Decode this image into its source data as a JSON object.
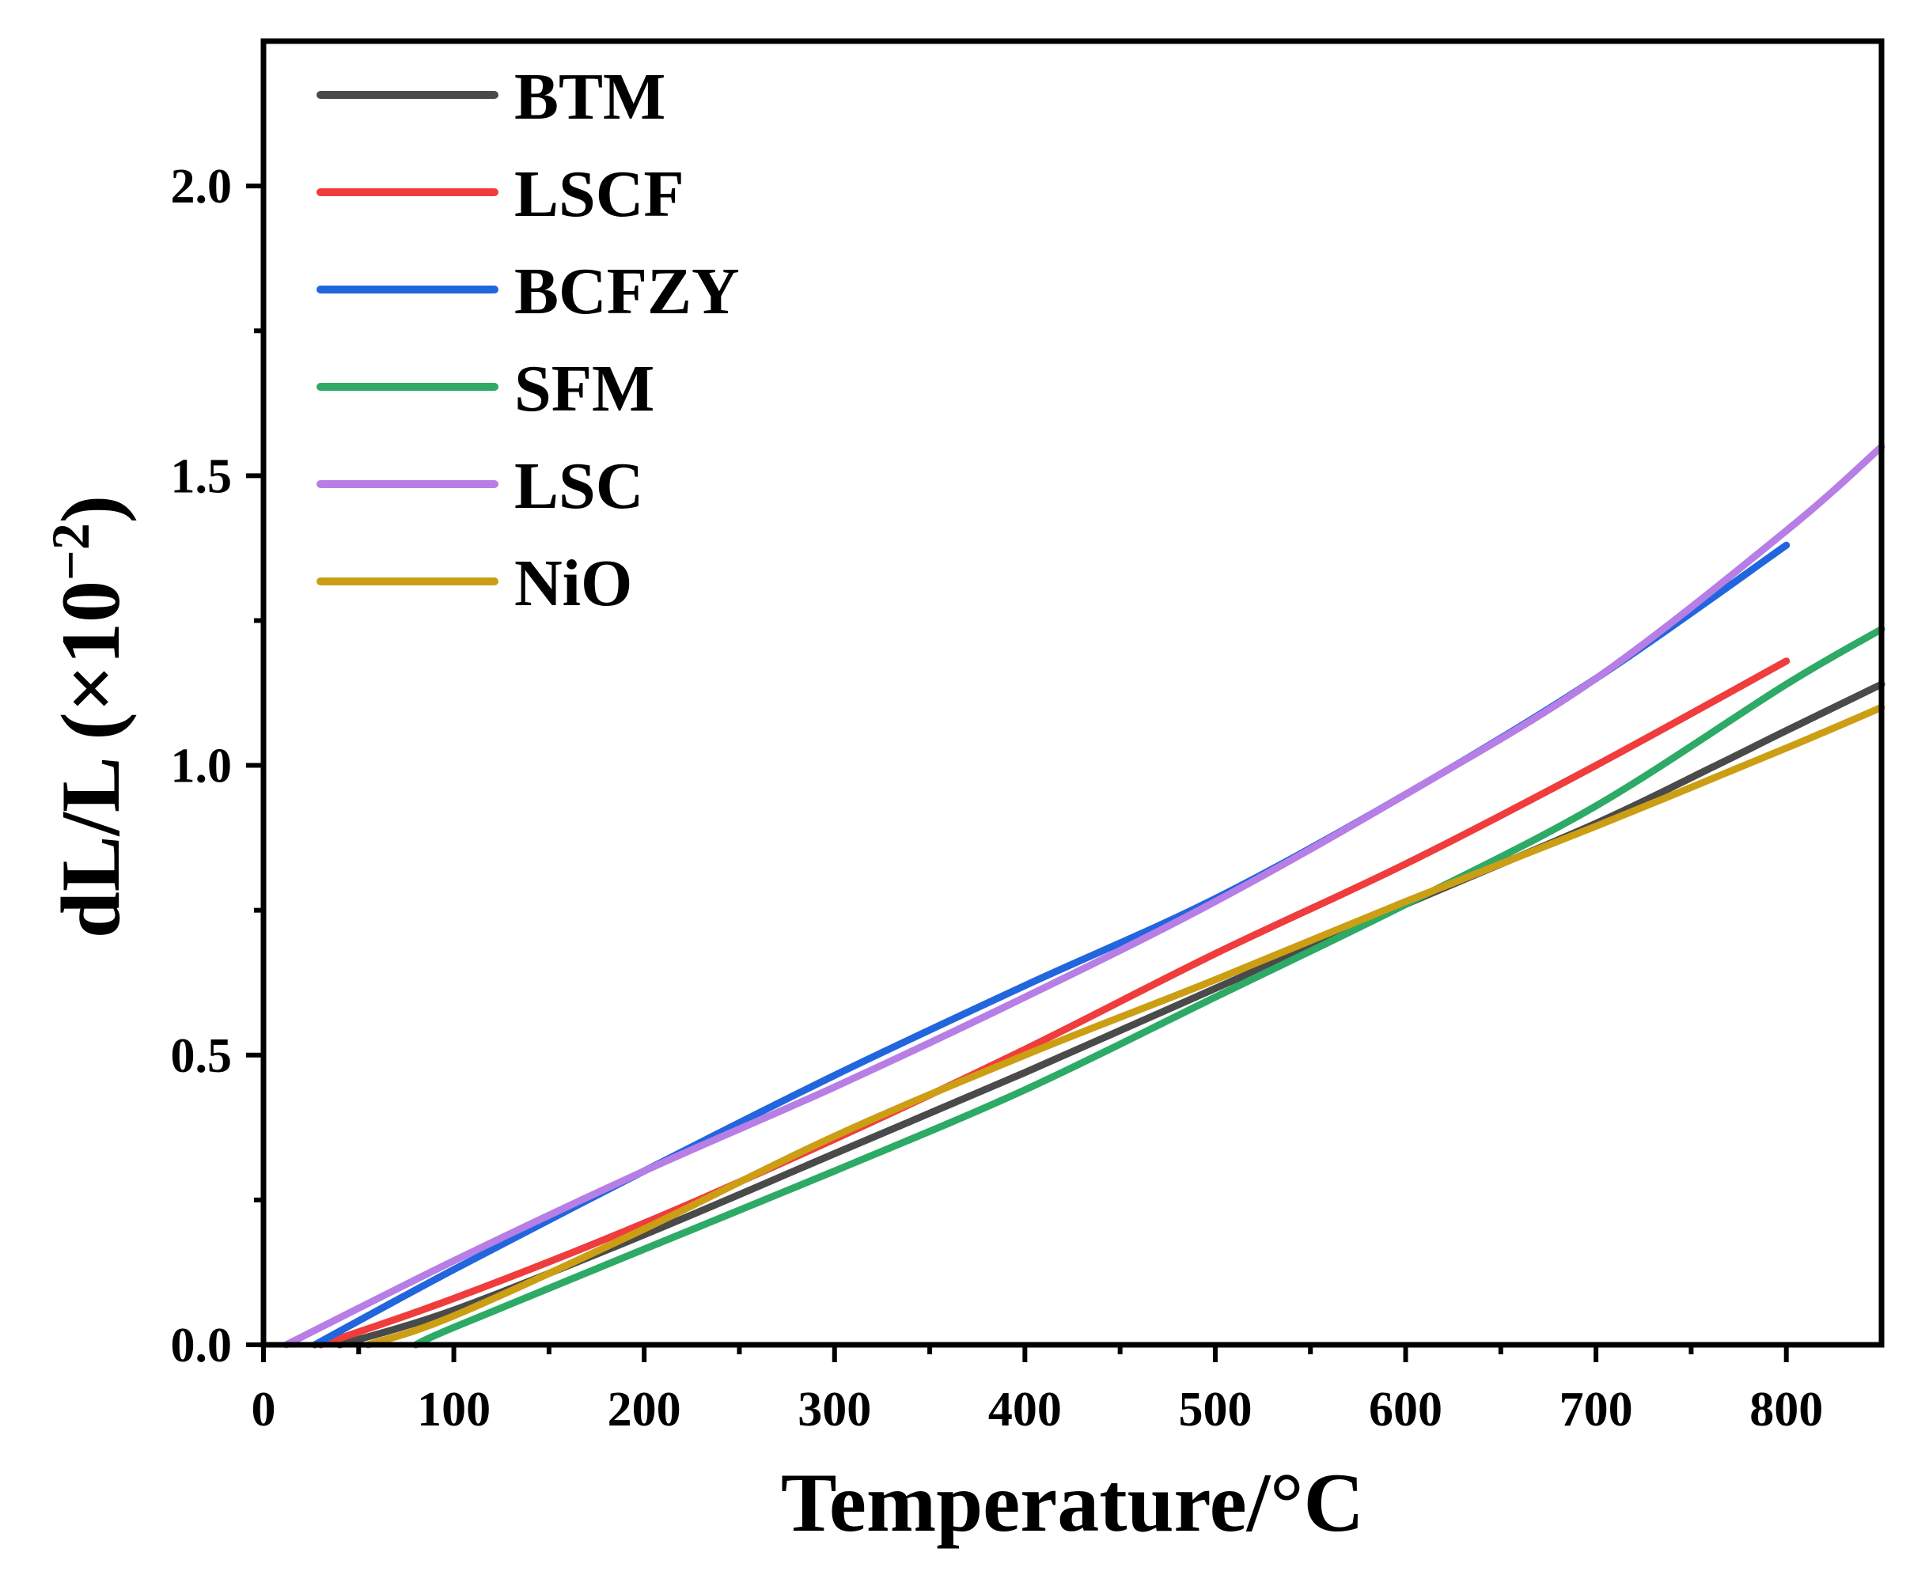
{
  "chart_data": {
    "type": "line",
    "title": "",
    "xlabel": "Temperature/°C",
    "ylabel": "dL/L (×10",
    "ylabel_exponent": "−2",
    "ylabel_close": ")",
    "xlim": [
      0,
      850
    ],
    "ylim": [
      0,
      2.25
    ],
    "x_ticks": [
      0,
      100,
      200,
      300,
      400,
      500,
      600,
      700,
      800
    ],
    "x_tick_labels": [
      "0",
      "100",
      "200",
      "300",
      "400",
      "500",
      "600",
      "700",
      "800"
    ],
    "y_ticks": [
      0.0,
      0.5,
      1.0,
      1.5,
      2.0
    ],
    "y_tick_labels": [
      "0.0",
      "0.5",
      "1.0",
      "1.5",
      "2.0"
    ],
    "grid": false,
    "legend_position": "top-left",
    "series": [
      {
        "name": "BTM",
        "color": "#4a4a4a",
        "x": [
          40,
          100,
          200,
          300,
          400,
          500,
          600,
          700,
          760,
          800,
          850
        ],
        "y": [
          0.0,
          0.06,
          0.19,
          0.33,
          0.47,
          0.615,
          0.76,
          0.9,
          0.995,
          1.06,
          1.14
        ]
      },
      {
        "name": "LSCF",
        "color": "#f03c3c",
        "x": [
          30,
          100,
          200,
          300,
          400,
          500,
          600,
          700,
          800
        ],
        "y": [
          0.0,
          0.08,
          0.21,
          0.355,
          0.51,
          0.675,
          0.83,
          1.0,
          1.18
        ]
      },
      {
        "name": "BCFZY",
        "color": "#2266dd",
        "x": [
          27,
          100,
          200,
          300,
          400,
          500,
          600,
          700,
          800
        ],
        "y": [
          0.0,
          0.13,
          0.3,
          0.465,
          0.62,
          0.77,
          0.95,
          1.15,
          1.38
        ]
      },
      {
        "name": "SFM",
        "color": "#2daa66",
        "x": [
          80,
          100,
          200,
          300,
          400,
          500,
          600,
          700,
          800,
          850
        ],
        "y": [
          0.0,
          0.03,
          0.165,
          0.3,
          0.44,
          0.6,
          0.76,
          0.93,
          1.14,
          1.235
        ]
      },
      {
        "name": "LSC",
        "color": "#b77ee6",
        "x": [
          12,
          100,
          200,
          300,
          400,
          500,
          600,
          700,
          800,
          850
        ],
        "y": [
          0.0,
          0.145,
          0.3,
          0.445,
          0.6,
          0.765,
          0.95,
          1.15,
          1.405,
          1.55
        ]
      },
      {
        "name": "NiO",
        "color": "#cc9e14",
        "x": [
          55,
          100,
          200,
          300,
          400,
          500,
          600,
          700,
          800,
          850
        ],
        "y": [
          0.0,
          0.05,
          0.2,
          0.36,
          0.5,
          0.63,
          0.765,
          0.895,
          1.03,
          1.1
        ]
      }
    ]
  }
}
